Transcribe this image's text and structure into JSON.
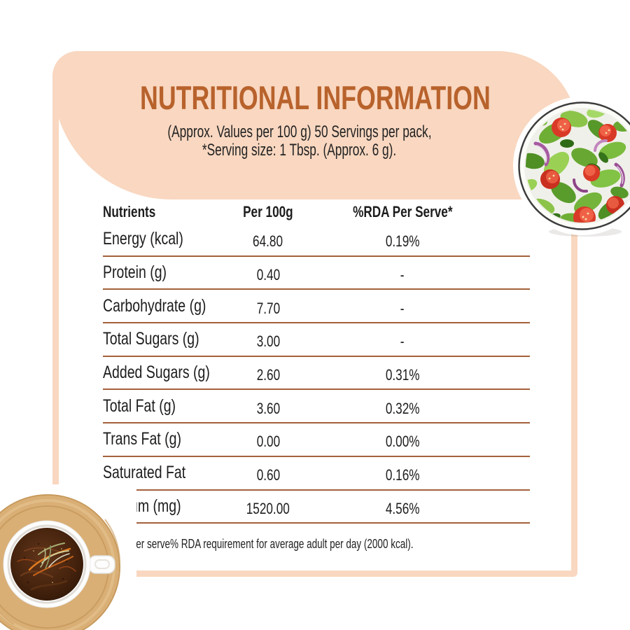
{
  "colors": {
    "peach": "#f9d7c0",
    "brown": "#b8622c",
    "divider": "#a4613a",
    "ink": "#1d1d1d"
  },
  "header": {
    "title": "NUTRITIONAL INFORMATION",
    "subtitle_line1": "(Approx. Values per 100 g) 50 Servings per pack,",
    "subtitle_line2": "*Serving size: 1 Tbsp. (Approx. 6 g)."
  },
  "table": {
    "columns": [
      "Nutrients",
      "Per 100g",
      "%RDA Per Serve*"
    ],
    "rows": [
      {
        "nutrient": "Energy (kcal)",
        "per_100g": "64.80",
        "rda_per_serve": "0.19%"
      },
      {
        "nutrient": "Protein (g)",
        "per_100g": "0.40",
        "rda_per_serve": "-"
      },
      {
        "nutrient": "Carbohydrate (g)",
        "per_100g": "7.70",
        "rda_per_serve": "-"
      },
      {
        "nutrient": "Total Sugars (g)",
        "per_100g": "3.00",
        "rda_per_serve": "-"
      },
      {
        "nutrient": "Added Sugars (g)",
        "per_100g": "2.60",
        "rda_per_serve": "0.31%"
      },
      {
        "nutrient": "Total Fat (g)",
        "per_100g": "3.60",
        "rda_per_serve": "0.32%"
      },
      {
        "nutrient": "Trans Fat (g)",
        "per_100g": "0.00",
        "rda_per_serve": "0.00%"
      },
      {
        "nutrient": "Saturated Fat",
        "per_100g": "0.60",
        "rda_per_serve": "0.16%"
      },
      {
        "nutrient": "Sodium (mg)",
        "per_100g": "1520.00",
        "rda_per_serve": "4.56%"
      }
    ]
  },
  "footnote": "*Per serve% RDA requirement for average adult per day (2000 kcal).",
  "images": {
    "top_right": "salad-bowl-photo",
    "bottom_left": "soup-cup-photo"
  }
}
